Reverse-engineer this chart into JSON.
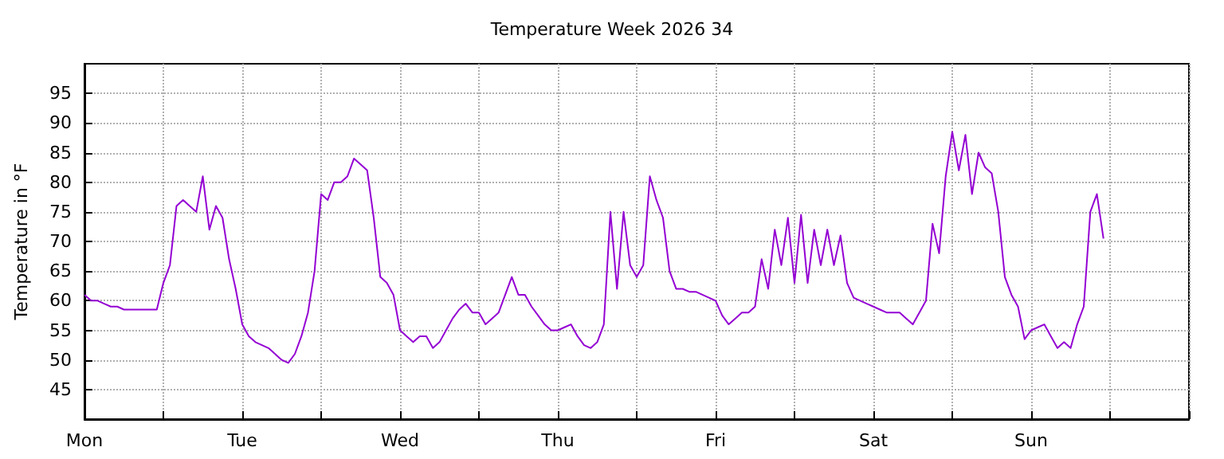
{
  "chart_data": {
    "type": "line",
    "title": "Temperature Week 2026 34",
    "ylabel": "Temperature in °F",
    "categories": [
      "Mon",
      null,
      null,
      null,
      null,
      null,
      null,
      null,
      null,
      null,
      null,
      null,
      null,
      null,
      null,
      null,
      null,
      null,
      null,
      null,
      null,
      null,
      null,
      null,
      "Tue",
      null,
      null,
      null,
      null,
      null,
      null,
      null,
      null,
      null,
      null,
      null,
      null,
      null,
      null,
      null,
      null,
      null,
      null,
      null,
      null,
      null,
      null,
      null,
      "Wed",
      null,
      null,
      null,
      null,
      null,
      null,
      null,
      null,
      null,
      null,
      null,
      null,
      null,
      null,
      null,
      null,
      null,
      null,
      null,
      null,
      null,
      null,
      null,
      "Thu",
      null,
      null,
      null,
      null,
      null,
      null,
      null,
      null,
      null,
      null,
      null,
      null,
      null,
      null,
      null,
      null,
      null,
      null,
      null,
      null,
      null,
      null,
      null,
      "Fri",
      null,
      null,
      null,
      null,
      null,
      null,
      null,
      null,
      null,
      null,
      null,
      null,
      null,
      null,
      null,
      null,
      null,
      null,
      null,
      null,
      null,
      null,
      null,
      "Sat",
      null,
      null,
      null,
      null,
      null,
      null,
      null,
      null,
      null,
      null,
      null,
      null,
      null,
      null,
      null,
      null,
      null,
      null,
      null,
      null,
      null,
      null,
      null,
      "Sun",
      null,
      null,
      null,
      null,
      null,
      null,
      null,
      null,
      null,
      null,
      null,
      null,
      null,
      null,
      null,
      null,
      null,
      null,
      null,
      null,
      null,
      null,
      null,
      null
    ],
    "ylim": [
      40,
      100
    ],
    "yticks": [
      45,
      50,
      55,
      60,
      65,
      70,
      75,
      80,
      85,
      90,
      95
    ],
    "grid": true,
    "marker": "none",
    "line_style": "solid",
    "series": [
      {
        "color": "#9400d3",
        "values": [
          61,
          60,
          60,
          59.5,
          59,
          59,
          58.5,
          58.5,
          58.5,
          58.5,
          58.5,
          58.5,
          63,
          66,
          76,
          77,
          76,
          75,
          81,
          72,
          76,
          74,
          67,
          62,
          56,
          54,
          53,
          52.5,
          52,
          51,
          50,
          49.5,
          51,
          54,
          58,
          65,
          78,
          77,
          80,
          80,
          81,
          84,
          83,
          82,
          74,
          64,
          63,
          61,
          55,
          54,
          53,
          54,
          54,
          52,
          53,
          55,
          57,
          58.5,
          59.5,
          58,
          58,
          56,
          57,
          58,
          61,
          64,
          61,
          61,
          59,
          57.5,
          56,
          55,
          55,
          55.5,
          56,
          54,
          52.5,
          52,
          53,
          56,
          75,
          62,
          75,
          66,
          64,
          66,
          81,
          77,
          74,
          65,
          62,
          62,
          61.5,
          61.5,
          61,
          60.5,
          60,
          57.5,
          56,
          57,
          58,
          58,
          59,
          67,
          62,
          72,
          66,
          74,
          63,
          74.5,
          63,
          72,
          66,
          72,
          66,
          71,
          63,
          60.5,
          60,
          59.5,
          59,
          58.5,
          58,
          58,
          58,
          57,
          56,
          58,
          60,
          73,
          68,
          81,
          88.5,
          82,
          88,
          78,
          85,
          82.5,
          81.5,
          75,
          64,
          61,
          59,
          53.5,
          55,
          55.5,
          56,
          54,
          52,
          53,
          52,
          56,
          59,
          75,
          78,
          70.5,
          null,
          null,
          null,
          null,
          null,
          null,
          null,
          null,
          null,
          null,
          null,
          null,
          null
        ]
      }
    ]
  }
}
